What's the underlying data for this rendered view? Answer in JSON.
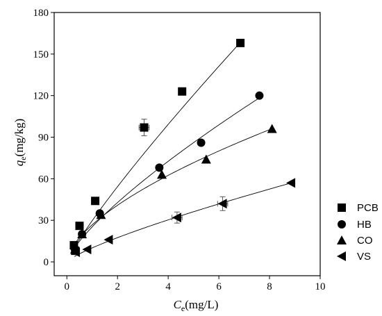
{
  "chart_data": {
    "type": "scatter",
    "x_axis": {
      "label_main": "C",
      "label_sub": "e",
      "label_unit": "(mg/L)",
      "min": -0.5,
      "max": 10,
      "ticks": [
        0,
        2,
        4,
        6,
        8,
        10
      ]
    },
    "y_axis": {
      "label_main": "q",
      "label_sub": "e",
      "label_unit": "(mg/kg)",
      "min": -10,
      "max": 180,
      "ticks": [
        0,
        30,
        60,
        90,
        120,
        150,
        180
      ]
    },
    "grid": false,
    "legend_position": "right",
    "series": [
      {
        "name": "PCB",
        "marker": "square",
        "points": [
          [
            0.28,
            12
          ],
          [
            0.33,
            8
          ],
          [
            0.5,
            26
          ],
          [
            1.12,
            44
          ],
          [
            3.05,
            97
          ],
          [
            4.55,
            123
          ],
          [
            6.85,
            158
          ]
        ],
        "x_err": [
          0,
          0,
          0,
          0,
          0.2,
          0,
          0
        ],
        "y_err": [
          0,
          0,
          0,
          0,
          6,
          0,
          0
        ],
        "fit": {
          "K": 29.7,
          "n": 0.87,
          "x_from": 0.2,
          "x_to": 6.85
        }
      },
      {
        "name": "HB",
        "marker": "circle",
        "points": [
          [
            0.3,
            10
          ],
          [
            0.6,
            20
          ],
          [
            1.3,
            35
          ],
          [
            3.65,
            68
          ],
          [
            5.3,
            86
          ],
          [
            7.6,
            120
          ]
        ],
        "x_err": [
          0,
          0,
          0,
          0,
          0,
          0
        ],
        "y_err": [
          0,
          0,
          0,
          0,
          0,
          0
        ],
        "fit": {
          "K": 25.24,
          "n": 0.762,
          "x_from": 0.2,
          "x_to": 7.6
        }
      },
      {
        "name": "CO",
        "marker": "triangle-up",
        "points": [
          [
            0.32,
            9
          ],
          [
            0.6,
            20
          ],
          [
            1.35,
            34
          ],
          [
            3.75,
            63
          ],
          [
            5.5,
            74
          ],
          [
            8.1,
            96
          ]
        ],
        "x_err": [
          0,
          0,
          0,
          0,
          0,
          0
        ],
        "y_err": [
          0,
          0,
          0,
          0,
          0,
          0
        ],
        "fit": {
          "K": 26.73,
          "n": 0.612,
          "x_from": 0.2,
          "x_to": 8.1
        }
      },
      {
        "name": "VS",
        "marker": "triangle-left",
        "points": [
          [
            0.35,
            7
          ],
          [
            0.8,
            9
          ],
          [
            1.65,
            16
          ],
          [
            4.35,
            32
          ],
          [
            6.15,
            42
          ],
          [
            8.85,
            57
          ]
        ],
        "x_err": [
          0,
          0,
          0,
          0.2,
          0.2,
          0
        ],
        "y_err": [
          0,
          0,
          0,
          4,
          5,
          0
        ],
        "fit": {
          "K": 10.08,
          "n": 0.794,
          "x_from": 0.3,
          "x_to": 8.85
        }
      }
    ]
  }
}
